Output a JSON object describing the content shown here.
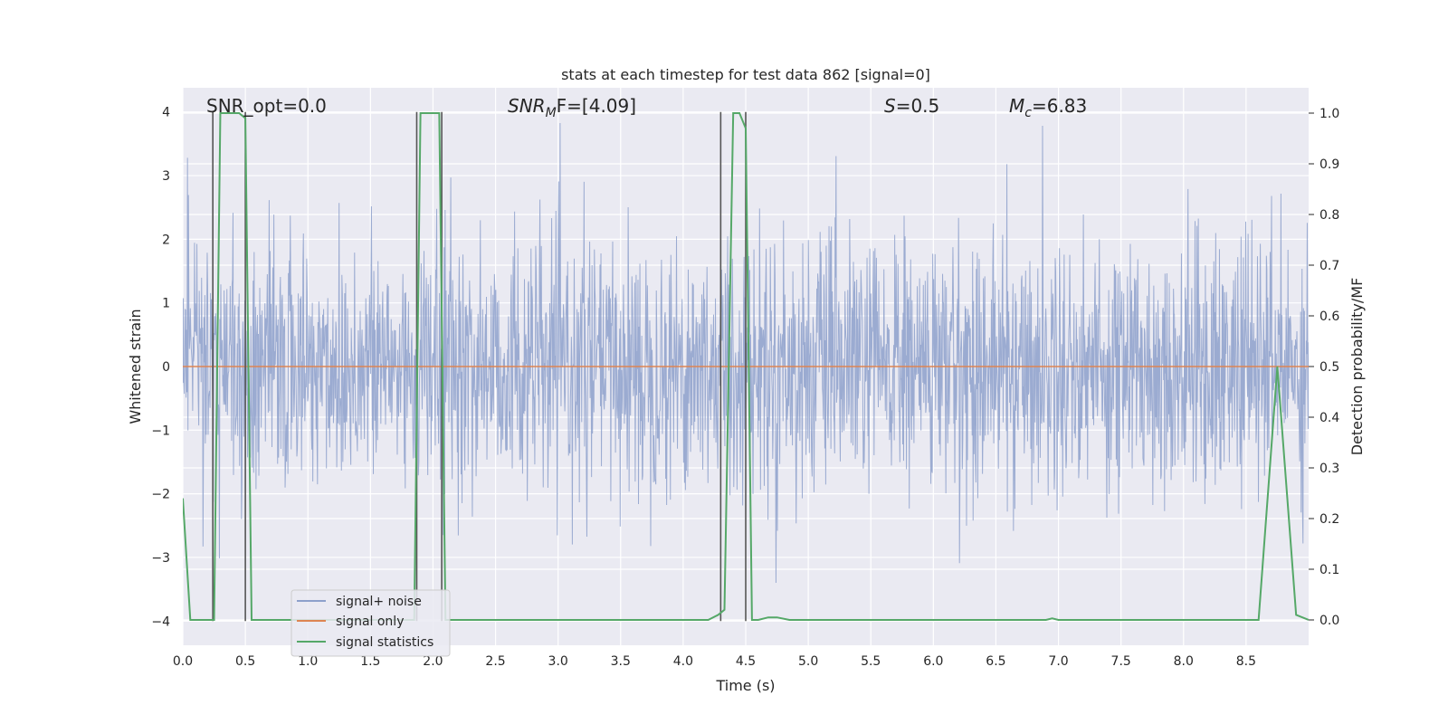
{
  "chart_data": {
    "type": "line",
    "title": "stats at each timestep for test data 862 [signal=0]",
    "xlabel": "Time (s)",
    "ylabel_left": "Whitened strain",
    "ylabel_right": "Detection probability/MF",
    "xlim": [
      0.0,
      9.0
    ],
    "ylim_left": [
      -4.38,
      4.38
    ],
    "ylim_right": [
      -0.05,
      1.05
    ],
    "grid": true,
    "legend_location": "lower-left",
    "x_ticks": [
      "0.0",
      "0.5",
      "1.0",
      "1.5",
      "2.0",
      "2.5",
      "3.0",
      "3.5",
      "4.0",
      "4.5",
      "5.0",
      "5.5",
      "6.0",
      "6.5",
      "7.0",
      "7.5",
      "8.0",
      "8.5"
    ],
    "y_left_ticks": [
      "−4",
      "−3",
      "−2",
      "−1",
      "0",
      "1",
      "2",
      "3",
      "4"
    ],
    "y_right_ticks": [
      "0.0",
      "0.1",
      "0.2",
      "0.3",
      "0.4",
      "0.5",
      "0.6",
      "0.7",
      "0.8",
      "0.9",
      "1.0"
    ],
    "annotations": {
      "snr_opt": "SNR_opt=0.0",
      "snr_mf_base": "SNR",
      "snr_mf_sub": "M",
      "snr_mf_rest": "F=[4.09]",
      "s_italic": "S",
      "s_rest": "=0.5",
      "mc_base": "M",
      "mc_sub": "c",
      "mc_rest": "=6.83"
    },
    "series": [
      {
        "name": "signal+ noise",
        "color": "#8da0cb",
        "style": "dense noise, amplitude mostly within ±2.5 with spikes to about ±4",
        "envelope_abs_max": 4.0
      },
      {
        "name": "signal only",
        "color": "#dd8452",
        "x": [
          0.0,
          9.0
        ],
        "y": [
          0.0,
          0.0
        ]
      },
      {
        "name": "signal statistics",
        "color": "#55a868",
        "axis": "right",
        "x": [
          0.0,
          0.06,
          0.25,
          0.3,
          0.45,
          0.5,
          0.55,
          0.6,
          1.0,
          1.85,
          1.9,
          2.05,
          2.1,
          2.15,
          4.0,
          4.2,
          4.28,
          4.33,
          4.4,
          4.45,
          4.5,
          4.55,
          4.6,
          4.68,
          4.75,
          4.85,
          5.0,
          5.5,
          6.9,
          6.95,
          7.0,
          8.0,
          8.6,
          8.75,
          8.9,
          9.0
        ],
        "y": [
          0.24,
          0.0,
          0.0,
          1.0,
          1.0,
          0.99,
          0.0,
          0.0,
          0.0,
          0.0,
          1.0,
          1.0,
          0.0,
          0.0,
          0.0,
          0.0,
          0.01,
          0.02,
          1.0,
          1.0,
          0.97,
          0.0,
          0.0,
          0.005,
          0.005,
          0.0,
          0.0,
          0.0,
          0.0,
          0.003,
          0.0,
          0.0,
          0.0,
          0.5,
          0.01,
          0.0
        ]
      }
    ],
    "vertical_lines": [
      0.24,
      0.5,
      1.87,
      2.07,
      4.3,
      4.5
    ],
    "vertical_line_color": "#555555"
  }
}
